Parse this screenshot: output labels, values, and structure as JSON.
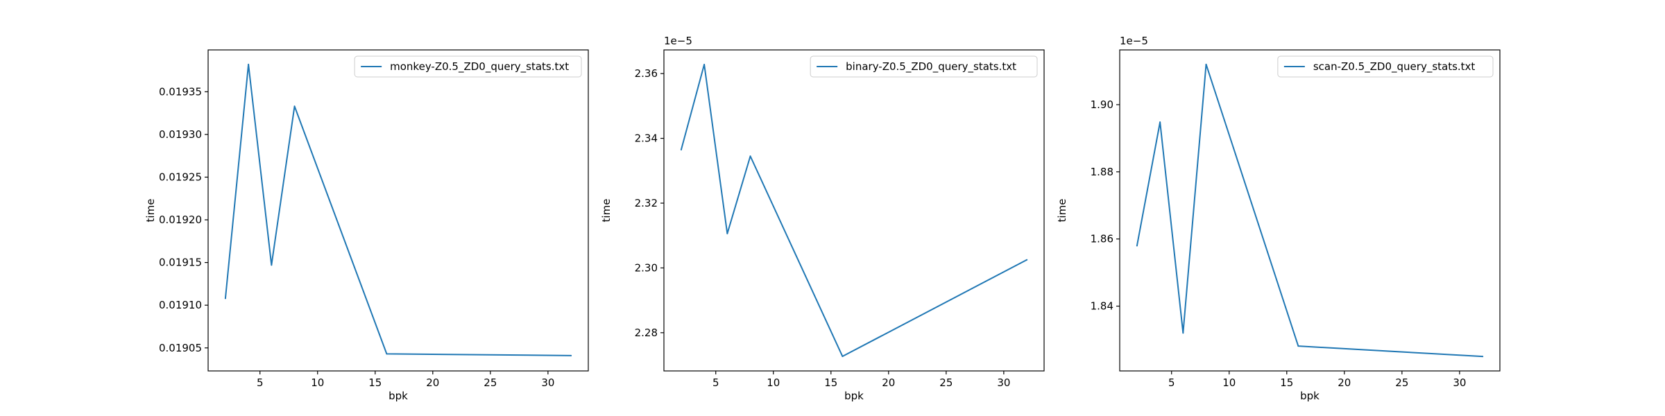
{
  "chart_data": [
    {
      "type": "line",
      "xlabel": "bpk",
      "ylabel": "time",
      "offset_text": "",
      "x": [
        2,
        4,
        6,
        8,
        16,
        32
      ],
      "series": [
        {
          "name": "monkey-Z0.5_ZD0_query_stats.txt",
          "color": "#1f77b4",
          "values": [
            0.019108,
            0.019382,
            0.019147,
            0.019333,
            0.019043,
            0.019041
          ]
        }
      ],
      "xlim": [
        0.5,
        33.5
      ],
      "ylim": [
        0.019023,
        0.019399
      ],
      "xticks": [
        5,
        10,
        15,
        20,
        25,
        30
      ],
      "xtick_labels": [
        "5",
        "10",
        "15",
        "20",
        "25",
        "30"
      ],
      "yticks": [
        0.01905,
        0.0191,
        0.01915,
        0.0192,
        0.01925,
        0.0193,
        0.01935
      ],
      "ytick_labels": [
        "0.01905",
        "0.01910",
        "0.01915",
        "0.01920",
        "0.01925",
        "0.01930",
        "0.01935"
      ],
      "legend_position": "upper right",
      "grid": false
    },
    {
      "type": "line",
      "xlabel": "bpk",
      "ylabel": "time",
      "offset_text": "1e−5",
      "x": [
        2,
        4,
        6,
        8,
        16,
        32
      ],
      "series": [
        {
          "name": "binary-Z0.5_ZD0_query_stats.txt",
          "color": "#1f77b4",
          "values": [
            2.3365,
            2.3628,
            2.3106,
            2.3345,
            2.2727,
            2.3025
          ]
        }
      ],
      "xlim": [
        0.5,
        33.5
      ],
      "ylim": [
        2.2682,
        2.3673
      ],
      "xticks": [
        5,
        10,
        15,
        20,
        25,
        30
      ],
      "xtick_labels": [
        "5",
        "10",
        "15",
        "20",
        "25",
        "30"
      ],
      "yticks": [
        2.28,
        2.3,
        2.32,
        2.34,
        2.36
      ],
      "ytick_labels": [
        "2.28",
        "2.30",
        "2.32",
        "2.34",
        "2.36"
      ],
      "legend_position": "upper right",
      "grid": false
    },
    {
      "type": "line",
      "xlabel": "bpk",
      "ylabel": "time",
      "offset_text": "1e−5",
      "x": [
        2,
        4,
        6,
        8,
        16,
        32
      ],
      "series": [
        {
          "name": "scan-Z0.5_ZD0_query_stats.txt",
          "color": "#1f77b4",
          "values": [
            1.858,
            1.8948,
            1.832,
            1.912,
            1.8281,
            1.825
          ]
        }
      ],
      "xlim": [
        0.5,
        33.5
      ],
      "ylim": [
        1.8207,
        1.9163
      ],
      "xticks": [
        5,
        10,
        15,
        20,
        25,
        30
      ],
      "xtick_labels": [
        "5",
        "10",
        "15",
        "20",
        "25",
        "30"
      ],
      "yticks": [
        1.84,
        1.86,
        1.88,
        1.9
      ],
      "ytick_labels": [
        "1.84",
        "1.86",
        "1.88",
        "1.90"
      ],
      "legend_position": "upper right",
      "grid": false
    }
  ]
}
